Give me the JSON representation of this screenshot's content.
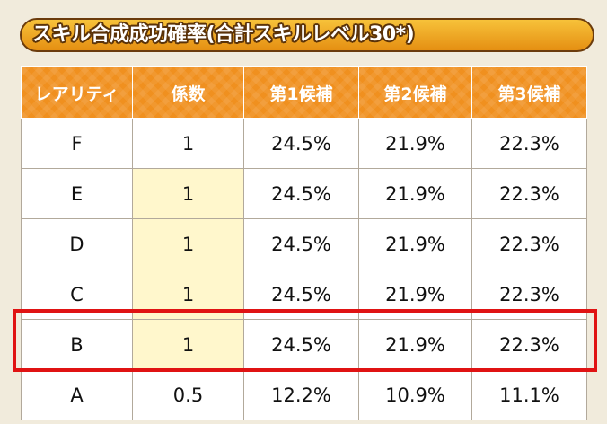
{
  "title": "スキル合成成功確率(合計スキルレベル30*)",
  "table": {
    "headers": [
      "レアリティ",
      "係数",
      "第1候補",
      "第2候補",
      "第3候補"
    ],
    "rows": [
      {
        "rarity": "F",
        "coef": "1",
        "p1": "24.5%",
        "p2": "21.9%",
        "p3": "22.3%"
      },
      {
        "rarity": "E",
        "coef": "1",
        "p1": "24.5%",
        "p2": "21.9%",
        "p3": "22.3%"
      },
      {
        "rarity": "D",
        "coef": "1",
        "p1": "24.5%",
        "p2": "21.9%",
        "p3": "22.3%"
      },
      {
        "rarity": "C",
        "coef": "1",
        "p1": "24.5%",
        "p2": "21.9%",
        "p3": "22.3%"
      },
      {
        "rarity": "B",
        "coef": "1",
        "p1": "24.5%",
        "p2": "21.9%",
        "p3": "22.3%"
      },
      {
        "rarity": "A",
        "coef": "0.5",
        "p1": "12.2%",
        "p2": "10.9%",
        "p3": "11.1%"
      }
    ]
  },
  "highlighted_row": "B",
  "colors": {
    "header_bg": "#f0901f",
    "highlight_border": "#e01313",
    "coef_highlight_bg": "#fff7cc",
    "page_bg": "#f1ebdc"
  }
}
